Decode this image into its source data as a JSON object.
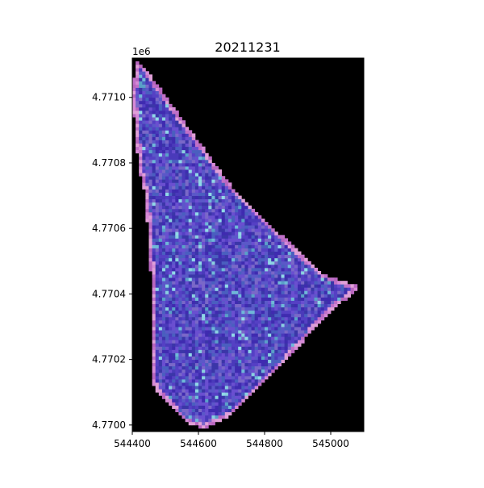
{
  "chart_data": {
    "type": "heatmap",
    "title": "20211231",
    "xlabel": "",
    "ylabel": "",
    "y_offset_label": "1e6",
    "xlim": [
      544400,
      545100
    ],
    "ylim": [
      4769980,
      4771120
    ],
    "x_ticks": [
      544400,
      544600,
      544800,
      545000
    ],
    "x_tick_labels": [
      "544400",
      "544600",
      "544800",
      "545000"
    ],
    "y_ticks": [
      4770000,
      4770200,
      4770400,
      4770600,
      4770800,
      4771000
    ],
    "y_tick_labels": [
      "4.7700",
      "4.7702",
      "4.7704",
      "4.7706",
      "4.7708",
      "4.7710"
    ],
    "grid": false,
    "legend": "none",
    "background_color": "#000000",
    "pixel_size": 10,
    "field_polygon": [
      [
        544410,
        4771110
      ],
      [
        544440,
        4771090
      ],
      [
        544560,
        4770920
      ],
      [
        544700,
        4770730
      ],
      [
        544850,
        4770580
      ],
      [
        544980,
        4770460
      ],
      [
        545090,
        4770420
      ],
      [
        544990,
        4770340
      ],
      [
        544850,
        4770180
      ],
      [
        544700,
        4770030
      ],
      [
        544620,
        4769990
      ],
      [
        544560,
        4770010
      ],
      [
        544470,
        4770110
      ],
      [
        544460,
        4770130
      ],
      [
        544460,
        4770390
      ],
      [
        544440,
        4770700
      ],
      [
        544420,
        4770780
      ],
      [
        544400,
        4771000
      ]
    ],
    "palette": [
      "#3f2bb0",
      "#5540c4",
      "#4a3aba",
      "#6a4fd0",
      "#3b36a8",
      "#5b58c8",
      "#4a5fbf",
      "#7a68c8"
    ],
    "edge_colors": [
      "#c070c8",
      "#d68ad6",
      "#b866bf",
      "#e0a0d8"
    ],
    "highlight_colors": [
      "#6fb8d8",
      "#8ad0e0",
      "#5aa0c8",
      "#90d8e8"
    ]
  }
}
